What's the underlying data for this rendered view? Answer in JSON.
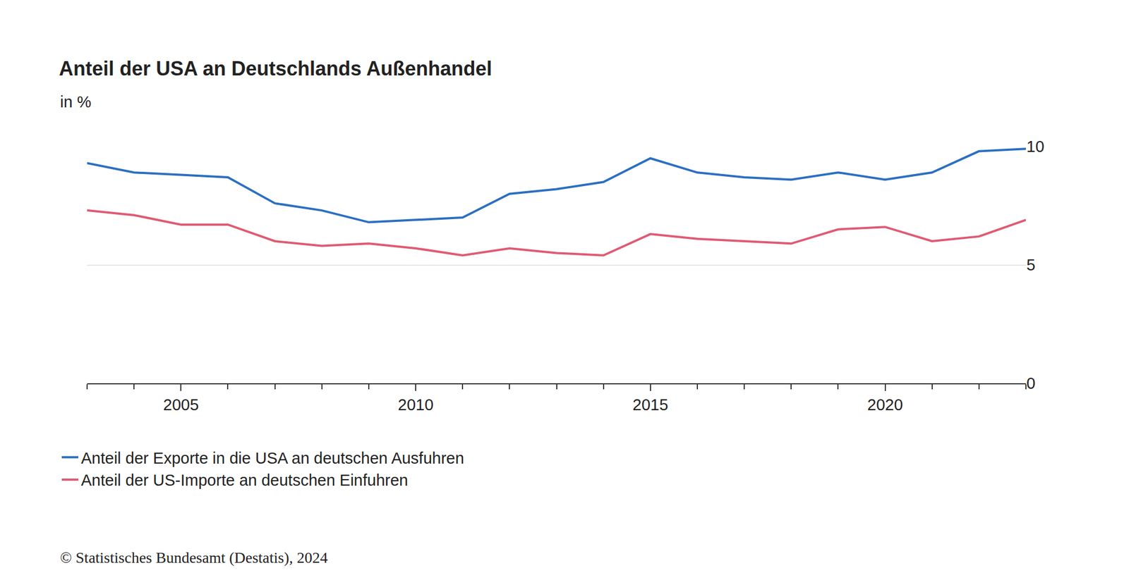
{
  "chart_data": {
    "type": "line",
    "title": "Anteil der USA an Deutschlands Außenhandel",
    "subtitle": "in %",
    "source": "© Statistisches Bundesamt (Destatis), 2024",
    "x": [
      2003,
      2004,
      2005,
      2006,
      2007,
      2008,
      2009,
      2010,
      2011,
      2012,
      2013,
      2014,
      2015,
      2016,
      2017,
      2018,
      2019,
      2020,
      2021,
      2022,
      2023
    ],
    "series": [
      {
        "name": "Anteil der Exporte in die USA an deutschen Ausfuhren",
        "color": "#2b6fc2",
        "values": [
          9.3,
          8.9,
          8.8,
          8.7,
          7.6,
          7.3,
          6.8,
          6.9,
          7.0,
          8.0,
          8.2,
          8.5,
          9.5,
          8.9,
          8.7,
          8.6,
          8.9,
          8.6,
          8.9,
          9.8,
          9.9
        ]
      },
      {
        "name": "Anteil der US-Importe an deutschen Einfuhren",
        "color": "#e05a72",
        "values": [
          7.3,
          7.1,
          6.7,
          6.7,
          6.0,
          5.8,
          5.9,
          5.7,
          5.4,
          5.7,
          5.5,
          5.4,
          6.3,
          6.1,
          6.0,
          5.9,
          6.5,
          6.6,
          6.0,
          6.2,
          6.9
        ]
      }
    ],
    "xlim": [
      2003,
      2023
    ],
    "xticks": [
      2005,
      2010,
      2015,
      2020
    ],
    "ylim": [
      0,
      10
    ],
    "yticks": [
      0,
      5,
      10
    ],
    "grid": true,
    "legend": "bottom left"
  }
}
